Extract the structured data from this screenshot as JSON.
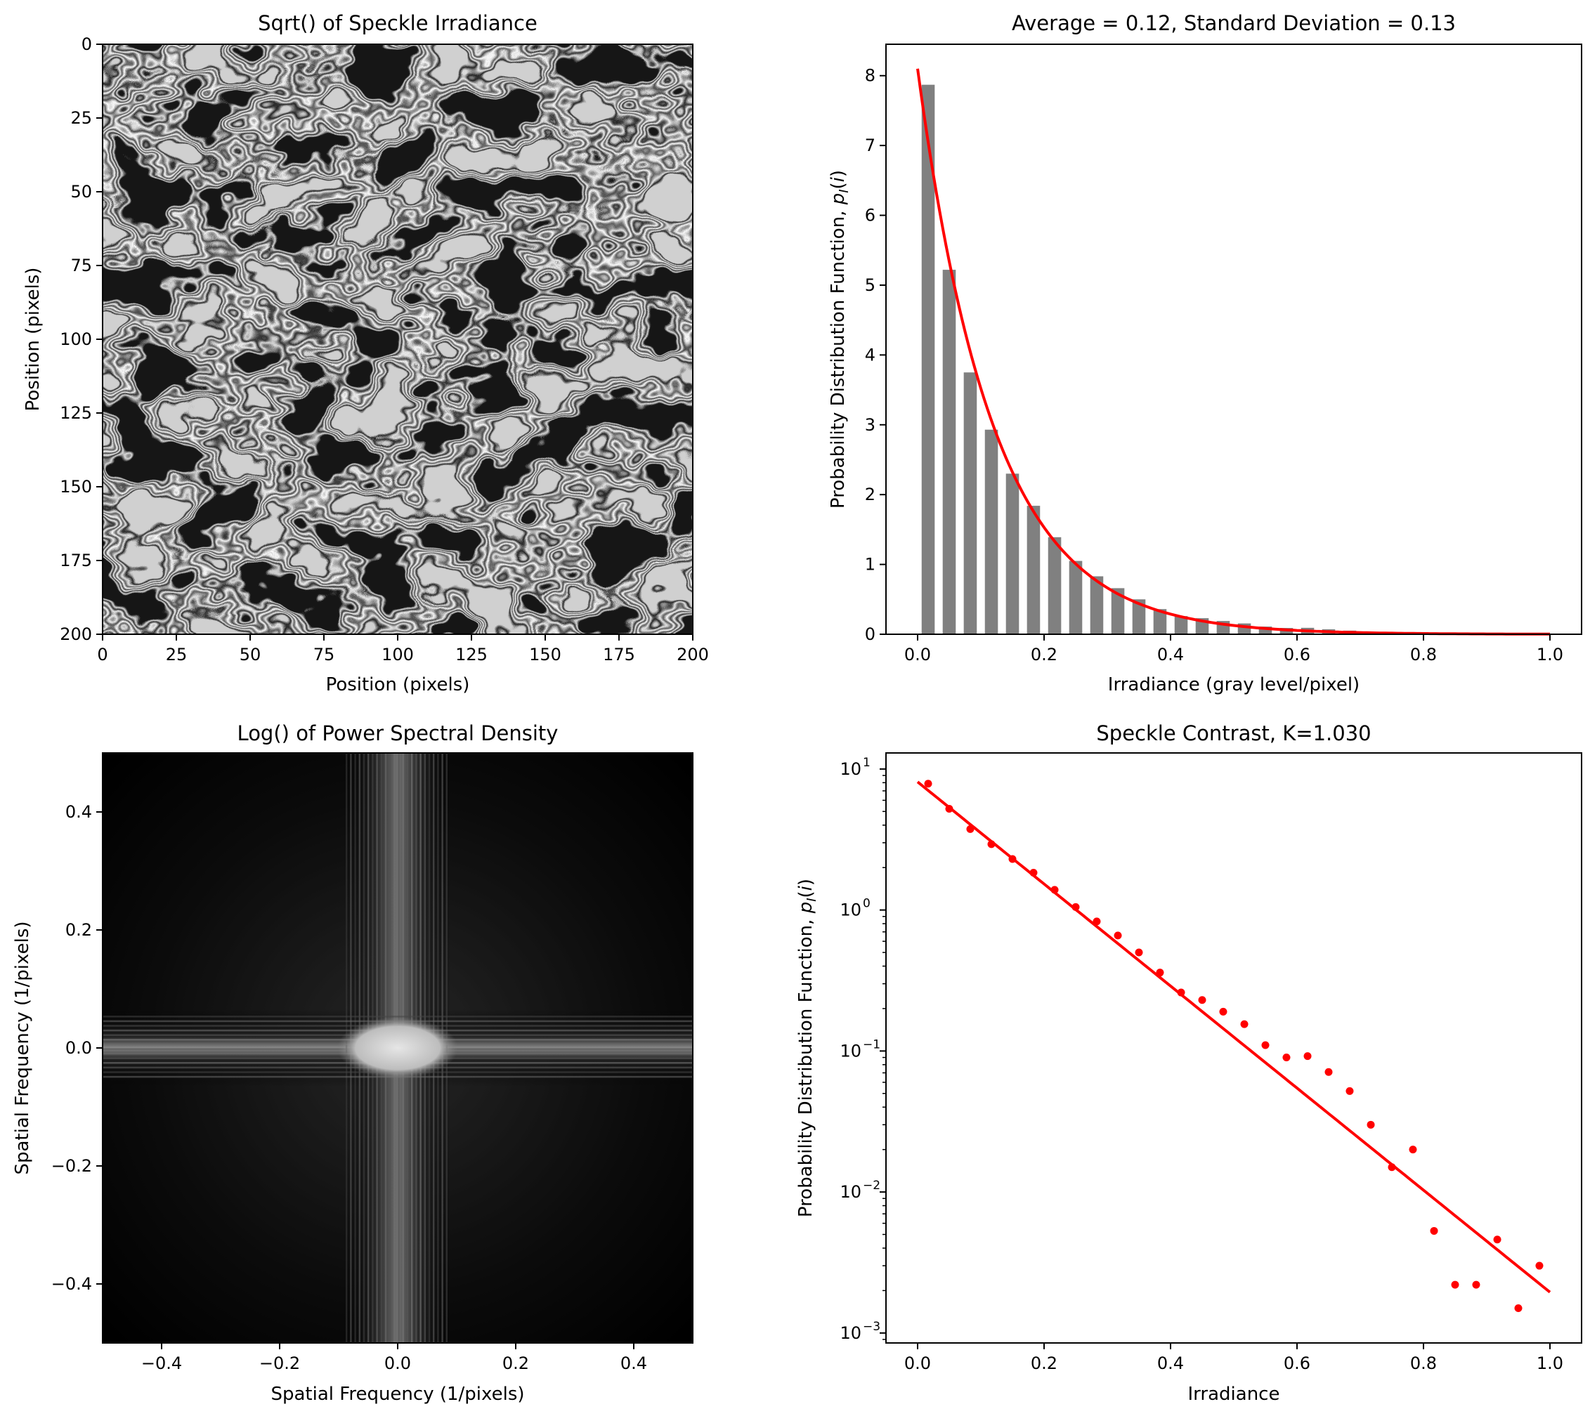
{
  "chart_data": [
    {
      "type": "heatmap",
      "title": "Sqrt() of Speckle Irradiance",
      "xlabel": "Position (pixels)",
      "ylabel": "Position (pixels)",
      "xlim": [
        0,
        200
      ],
      "ylim": [
        200,
        0
      ],
      "xticks": [
        "0",
        "25",
        "50",
        "75",
        "100",
        "125",
        "150",
        "175",
        "200"
      ],
      "yticks": [
        "0",
        "25",
        "50",
        "75",
        "100",
        "125",
        "150",
        "175",
        "200"
      ],
      "colormap": "gray"
    },
    {
      "type": "bar",
      "title": "Average = 0.12, Standard Deviation = 0.13",
      "xlabel": "Irradiance (gray level/pixel)",
      "ylabel": "Probability Distribution Function, p_I(i)",
      "ylabel_parts": [
        "Probability Distribution Function, ",
        "p",
        "I",
        "(",
        "i",
        ")"
      ],
      "xlim": [
        -0.05,
        1.05
      ],
      "ylim": [
        0,
        8.45
      ],
      "xticks": [
        "0.0",
        "0.2",
        "0.4",
        "0.6",
        "0.8",
        "1.0"
      ],
      "yticks": [
        "0",
        "1",
        "2",
        "3",
        "4",
        "5",
        "6",
        "7",
        "8"
      ],
      "bar_color": "#808080",
      "curve_color": "#ff0000",
      "x": [
        0.0167,
        0.05,
        0.0833,
        0.1167,
        0.15,
        0.1833,
        0.2167,
        0.25,
        0.2833,
        0.3167,
        0.35,
        0.3833,
        0.4167,
        0.45,
        0.4833,
        0.5167,
        0.55,
        0.5833,
        0.6167,
        0.65,
        0.6833,
        0.7167,
        0.75,
        0.7833,
        0.8167,
        0.85,
        0.8833,
        0.9167,
        0.95,
        0.9833
      ],
      "values": [
        7.87,
        5.22,
        3.75,
        2.93,
        2.3,
        1.84,
        1.39,
        1.05,
        0.83,
        0.66,
        0.5,
        0.36,
        0.26,
        0.23,
        0.19,
        0.155,
        0.11,
        0.09,
        0.092,
        0.071,
        0.052,
        0.03,
        0.015,
        0.02,
        0.0053,
        0.0022,
        0.0022,
        0.0046,
        0.0015,
        0.003
      ],
      "fit": {
        "type": "exponential",
        "amplitude": 8.1,
        "mean": 0.12
      }
    },
    {
      "type": "heatmap",
      "title": "Log() of Power Spectral Density",
      "xlabel": "Spatial Frequency (1/pixels)",
      "ylabel": "Spatial Frequency (1/pixels)",
      "xlim": [
        -0.5,
        0.5
      ],
      "ylim": [
        -0.5,
        0.5
      ],
      "xticks": [
        "−0.4",
        "−0.2",
        "0.0",
        "0.2",
        "0.4"
      ],
      "yticks": [
        "−0.4",
        "−0.2",
        "0.0",
        "0.2",
        "0.4"
      ],
      "colormap": "gray"
    },
    {
      "type": "scatter",
      "title": "Speckle Contrast, K=1.030",
      "xlabel": "Irradiance",
      "ylabel": "Probability Distribution Function, p_I(i)",
      "ylabel_parts": [
        "Probability Distribution Function, ",
        "p",
        "I",
        "(",
        "i",
        ")"
      ],
      "yscale": "log",
      "xlim": [
        -0.05,
        1.05
      ],
      "ylim": [
        0.00085,
        13
      ],
      "xticks": [
        "0.0",
        "0.2",
        "0.4",
        "0.6",
        "0.8",
        "1.0"
      ],
      "yticks": [
        {
          "base": "10",
          "exp": "1"
        },
        {
          "base": "10",
          "exp": "0"
        },
        {
          "base": "10",
          "exp": "−1"
        },
        {
          "base": "10",
          "exp": "−2"
        },
        {
          "base": "10",
          "exp": "−3"
        }
      ],
      "color": "#ff0000",
      "x": [
        0.0167,
        0.05,
        0.0833,
        0.1167,
        0.15,
        0.1833,
        0.2167,
        0.25,
        0.2833,
        0.3167,
        0.35,
        0.3833,
        0.4167,
        0.45,
        0.4833,
        0.5167,
        0.55,
        0.5833,
        0.6167,
        0.65,
        0.6833,
        0.7167,
        0.75,
        0.7833,
        0.8167,
        0.85,
        0.8833,
        0.9167,
        0.95,
        0.9833
      ],
      "y": [
        7.87,
        5.22,
        3.75,
        2.93,
        2.3,
        1.84,
        1.39,
        1.05,
        0.83,
        0.66,
        0.5,
        0.36,
        0.26,
        0.23,
        0.19,
        0.155,
        0.11,
        0.09,
        0.092,
        0.071,
        0.052,
        0.03,
        0.015,
        0.02,
        0.0053,
        0.0022,
        0.0022,
        0.0046,
        0.0015,
        0.003
      ],
      "fit": {
        "type": "exponential",
        "amplitude": 8.1,
        "mean": 0.12
      }
    }
  ]
}
